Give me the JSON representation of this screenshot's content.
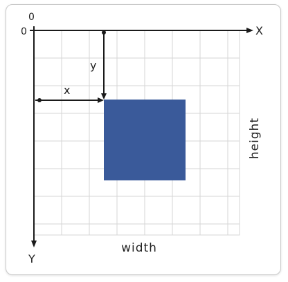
{
  "labels": {
    "origin_x": "0",
    "origin_y": "0",
    "x_axis": "X",
    "y_axis": "Y",
    "x_offset": "x",
    "y_offset": "y",
    "width": "width",
    "height": "height"
  },
  "colors": {
    "rect_fill": "#3a5a9a",
    "grid": "#d6d6d6",
    "axis": "#1a1a1a",
    "frame_border": "#c9c9c9"
  }
}
